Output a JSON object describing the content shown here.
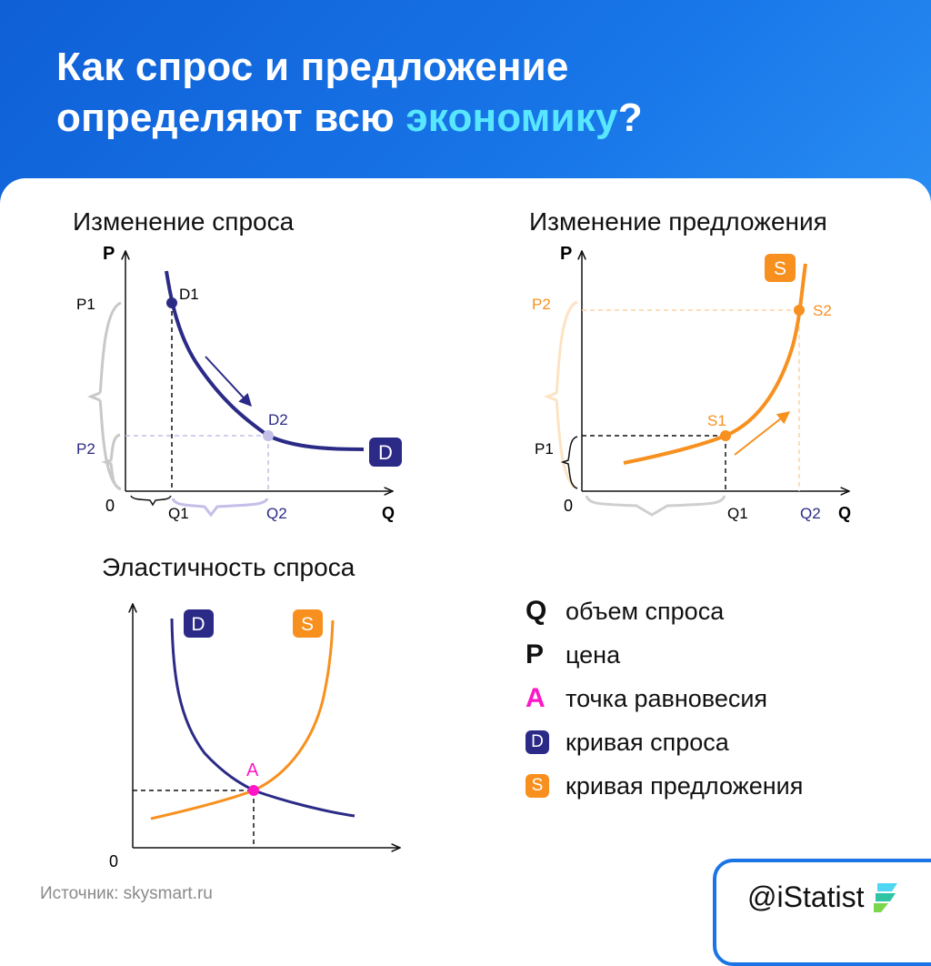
{
  "header": {
    "title_line1": "Как спрос и предложение",
    "title_line2_prefix": "определяют всю ",
    "title_line2_highlight": "экономику",
    "title_line2_suffix": "?"
  },
  "colors": {
    "demand": "#2b2a86",
    "supply": "#f7901e",
    "equilibrium": "#ff16c8",
    "header_blue": "#1468e0",
    "highlight": "#58e7ff",
    "brand_blue": "#1a74e6"
  },
  "demand_change": {
    "title": "Изменение спроса",
    "y_axis": "P",
    "x_axis": "Q",
    "origin": "0",
    "p1": "P1",
    "p2": "P2",
    "q1": "Q1",
    "q2": "Q2",
    "d1": "D1",
    "d2": "D2",
    "curve_badge": "D"
  },
  "supply_change": {
    "title": "Изменение предложения",
    "y_axis": "P",
    "x_axis": "Q",
    "origin": "0",
    "p1": "P1",
    "p2": "P2",
    "q1": "Q1",
    "q2": "Q2",
    "s1": "S1",
    "s2": "S2",
    "curve_badge": "S"
  },
  "elasticity": {
    "title": "Эластичность спроса",
    "origin": "0",
    "demand_badge": "D",
    "supply_badge": "S",
    "point": "A"
  },
  "legend": [
    {
      "symbol": "Q",
      "label": "объем спроса",
      "kind": "glyph",
      "color": "#111111"
    },
    {
      "symbol": "P",
      "label": "цена",
      "kind": "glyph",
      "color": "#111111"
    },
    {
      "symbol": "A",
      "label": "точка равновесия",
      "kind": "glyph",
      "color": "#ff16c8"
    },
    {
      "symbol": "D",
      "label": "кривая спроса",
      "kind": "badge",
      "color": "#2b2a86"
    },
    {
      "symbol": "S",
      "label": "кривая предложения",
      "kind": "badge",
      "color": "#f7901e"
    }
  ],
  "footer": {
    "source": "Источник: skysmart.ru",
    "brand": "@iStatist",
    "brand_logo_icon": "leaf-logo-icon"
  }
}
